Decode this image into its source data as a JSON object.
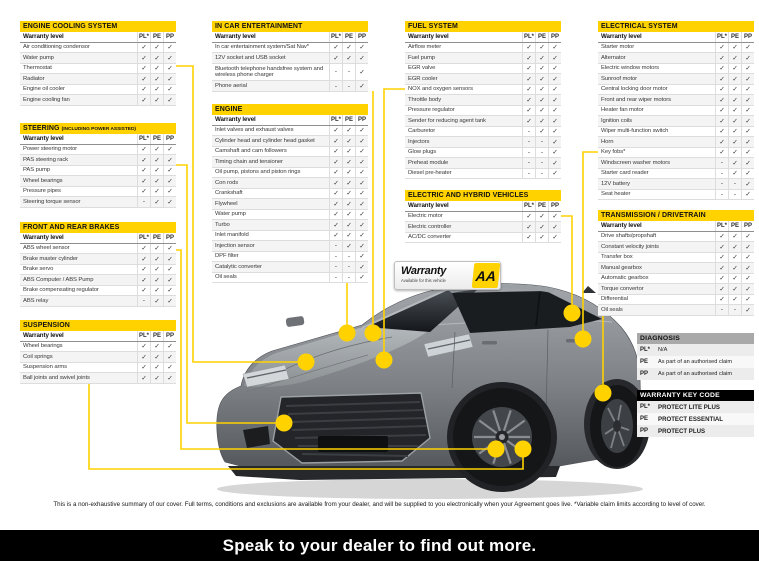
{
  "page": {
    "disclaimer": "This is a non-exhaustive summary of our cover. Full terms, conditions and exclusions are available from your dealer, and will be supplied to you electronically when your Agreement goes live. *Variable claim limits according to level of cover.",
    "footer_cta": "Speak to your dealer to find out more."
  },
  "colors": {
    "accent": "#FFD200",
    "footer_bg": "#000000",
    "diagnosis_header": "#A9A9A9"
  },
  "badge": {
    "title": "Warranty",
    "subtitle": "Available for this vehicle",
    "logo": "AA"
  },
  "columns": {
    "row_label": "Warranty level",
    "levels": [
      "PL*",
      "PE",
      "PP"
    ]
  },
  "tables": [
    {
      "id": "engine-cooling-system",
      "title": "ENGINE COOLING SYSTEM",
      "note": "",
      "rows": [
        [
          "Air conditioning condensor",
          "✓",
          "✓",
          "✓"
        ],
        [
          "Water pump",
          "✓",
          "✓",
          "✓"
        ],
        [
          "Thermostat",
          "✓",
          "✓",
          "✓"
        ],
        [
          "Radiator",
          "✓",
          "✓",
          "✓"
        ],
        [
          "Engine oil cooler",
          "✓",
          "✓",
          "✓"
        ],
        [
          "Engine cooling fan",
          "✓",
          "✓",
          "✓"
        ]
      ]
    },
    {
      "id": "steering",
      "title": "STEERING",
      "note": "(INCLUDING POWER ASSISTED)",
      "rows": [
        [
          "Power steering motor",
          "✓",
          "✓",
          "✓"
        ],
        [
          "PAS steering rack",
          "✓",
          "✓",
          "✓"
        ],
        [
          "PAS pump",
          "✓",
          "✓",
          "✓"
        ],
        [
          "Wheel bearings",
          "✓",
          "✓",
          "✓"
        ],
        [
          "Pressure pipes",
          "✓",
          "✓",
          "✓"
        ],
        [
          "Steering torque sensor",
          "-",
          "✓",
          "✓"
        ]
      ]
    },
    {
      "id": "front-and-rear-brakes",
      "title": "FRONT AND REAR BRAKES",
      "note": "",
      "rows": [
        [
          "ABS wheel sensor",
          "✓",
          "✓",
          "✓"
        ],
        [
          "Brake master cylinder",
          "✓",
          "✓",
          "✓"
        ],
        [
          "Brake servo",
          "✓",
          "✓",
          "✓"
        ],
        [
          "ABS Computer / ABS Pump",
          "✓",
          "✓",
          "✓"
        ],
        [
          "Brake compensating regulator",
          "✓",
          "✓",
          "✓"
        ],
        [
          "ABS relay",
          "-",
          "✓",
          "✓"
        ]
      ]
    },
    {
      "id": "suspension",
      "title": "SUSPENSION",
      "note": "",
      "rows": [
        [
          "Wheel bearings",
          "✓",
          "✓",
          "✓"
        ],
        [
          "Coil springs",
          "✓",
          "✓",
          "✓"
        ],
        [
          "Suspension arms",
          "✓",
          "✓",
          "✓"
        ],
        [
          "Ball joints and swivel joints",
          "✓",
          "✓",
          "✓"
        ]
      ]
    },
    {
      "id": "in-car-entertainment",
      "title": "IN CAR ENTERTAINMENT",
      "note": "",
      "rows": [
        [
          "In car entertainment system/Sat Nav*",
          "✓",
          "✓",
          "✓"
        ],
        [
          "12V socket and USB socket",
          "✓",
          "✓",
          "✓"
        ],
        [
          "Bluetooth telephone handsfree system and wireless phone charger",
          "-",
          "-",
          "✓"
        ],
        [
          "Phone aerial",
          "-",
          "-",
          "✓"
        ]
      ]
    },
    {
      "id": "engine",
      "title": "ENGINE",
      "note": "",
      "rows": [
        [
          "Inlet valves and exhaust valves",
          "✓",
          "✓",
          "✓"
        ],
        [
          "Cylinder head and cylinder head gasket",
          "✓",
          "✓",
          "✓"
        ],
        [
          "Camshaft and cam followers",
          "✓",
          "✓",
          "✓"
        ],
        [
          "Timing chain and tensioner",
          "✓",
          "✓",
          "✓"
        ],
        [
          "Oil pump, pistons and piston rings",
          "✓",
          "✓",
          "✓"
        ],
        [
          "Con rods",
          "✓",
          "✓",
          "✓"
        ],
        [
          "Crankshaft",
          "✓",
          "✓",
          "✓"
        ],
        [
          "Flywheel",
          "✓",
          "✓",
          "✓"
        ],
        [
          "Water pump",
          "✓",
          "✓",
          "✓"
        ],
        [
          "Turbo",
          "✓",
          "✓",
          "✓"
        ],
        [
          "Inlet manifold",
          "✓",
          "✓",
          "✓"
        ],
        [
          "Injection sensor",
          "-",
          "✓",
          "✓"
        ],
        [
          "DPF filter",
          "-",
          "-",
          "✓"
        ],
        [
          "Catalytic converter",
          "-",
          "-",
          "✓"
        ],
        [
          "Oil seals",
          "-",
          "-",
          "✓"
        ]
      ]
    },
    {
      "id": "fuel-system",
      "title": "FUEL SYSTEM",
      "note": "",
      "rows": [
        [
          "Airflow meter",
          "✓",
          "✓",
          "✓"
        ],
        [
          "Fuel pump",
          "✓",
          "✓",
          "✓"
        ],
        [
          "EGR valve",
          "✓",
          "✓",
          "✓"
        ],
        [
          "EGR cooler",
          "✓",
          "✓",
          "✓"
        ],
        [
          "NOX and oxygen sensors",
          "✓",
          "✓",
          "✓"
        ],
        [
          "Throttle body",
          "✓",
          "✓",
          "✓"
        ],
        [
          "Pressure regulator",
          "✓",
          "✓",
          "✓"
        ],
        [
          "Sender for reducing agent tank",
          "✓",
          "✓",
          "✓"
        ],
        [
          "Carburetor",
          "-",
          "✓",
          "✓"
        ],
        [
          "Injectors",
          "-",
          "-",
          "✓"
        ],
        [
          "Glow plugs",
          "-",
          "-",
          "✓"
        ],
        [
          "Preheat module",
          "-",
          "-",
          "✓"
        ],
        [
          "Diesel pre-heater",
          "-",
          "-",
          "✓"
        ]
      ]
    },
    {
      "id": "electric-and-hybrid-vehicles",
      "title": "ELECTRIC AND HYBRID VEHICLES",
      "note": "",
      "rows": [
        [
          "Electric motor",
          "✓",
          "✓",
          "✓"
        ],
        [
          "Electric controller",
          "✓",
          "✓",
          "✓"
        ],
        [
          "AC/DC converter",
          "✓",
          "✓",
          "✓"
        ]
      ]
    },
    {
      "id": "electrical-system",
      "title": "ELECTRICAL SYSTEM",
      "note": "",
      "rows": [
        [
          "Starter motor",
          "✓",
          "✓",
          "✓"
        ],
        [
          "Alternator",
          "✓",
          "✓",
          "✓"
        ],
        [
          "Electric window motors",
          "✓",
          "✓",
          "✓"
        ],
        [
          "Sunroof motor",
          "✓",
          "✓",
          "✓"
        ],
        [
          "Central locking door motor",
          "✓",
          "✓",
          "✓"
        ],
        [
          "Front and rear wiper motors",
          "✓",
          "✓",
          "✓"
        ],
        [
          "Heater fan motor",
          "✓",
          "✓",
          "✓"
        ],
        [
          "Ignition coils",
          "✓",
          "✓",
          "✓"
        ],
        [
          "Wiper multi-function switch",
          "✓",
          "✓",
          "✓"
        ],
        [
          "Horn",
          "✓",
          "✓",
          "✓"
        ],
        [
          "Key fobs*",
          "✓",
          "✓",
          "✓"
        ],
        [
          "Windscreen washer motors",
          "-",
          "✓",
          "✓"
        ],
        [
          "Starter card reader",
          "-",
          "✓",
          "✓"
        ],
        [
          "12V battery",
          "-",
          "-",
          "✓"
        ],
        [
          "Seat heater",
          "-",
          "-",
          "✓"
        ]
      ]
    },
    {
      "id": "transmission-drivetrain",
      "title": "TRANSMISSION / DRIVETRAIN",
      "note": "",
      "rows": [
        [
          "Drive shafts/propshaft",
          "✓",
          "✓",
          "✓"
        ],
        [
          "Constant velocity joints",
          "✓",
          "✓",
          "✓"
        ],
        [
          "Transfer box",
          "✓",
          "✓",
          "✓"
        ],
        [
          "Manual gearbox",
          "✓",
          "✓",
          "✓"
        ],
        [
          "Automatic gearbox",
          "✓",
          "✓",
          "✓"
        ],
        [
          "Torque convertor",
          "✓",
          "✓",
          "✓"
        ],
        [
          "Differential",
          "✓",
          "✓",
          "✓"
        ],
        [
          "Oil seals",
          "-",
          "-",
          "✓"
        ]
      ]
    }
  ],
  "diagnosis": {
    "title": "DIAGNOSIS",
    "rows": [
      [
        "PL*",
        "N/A"
      ],
      [
        "PE",
        "As part of an authorised claim"
      ],
      [
        "PP",
        "As part of an authorised claim"
      ]
    ]
  },
  "warranty_key_code": {
    "title": "WARRANTY KEY CODE",
    "rows": [
      [
        "PL*",
        "PROTECT LITE PLUS"
      ],
      [
        "PE",
        "PROTECT ESSENTIAL"
      ],
      [
        "PP",
        "PROTECT PLUS"
      ]
    ]
  }
}
